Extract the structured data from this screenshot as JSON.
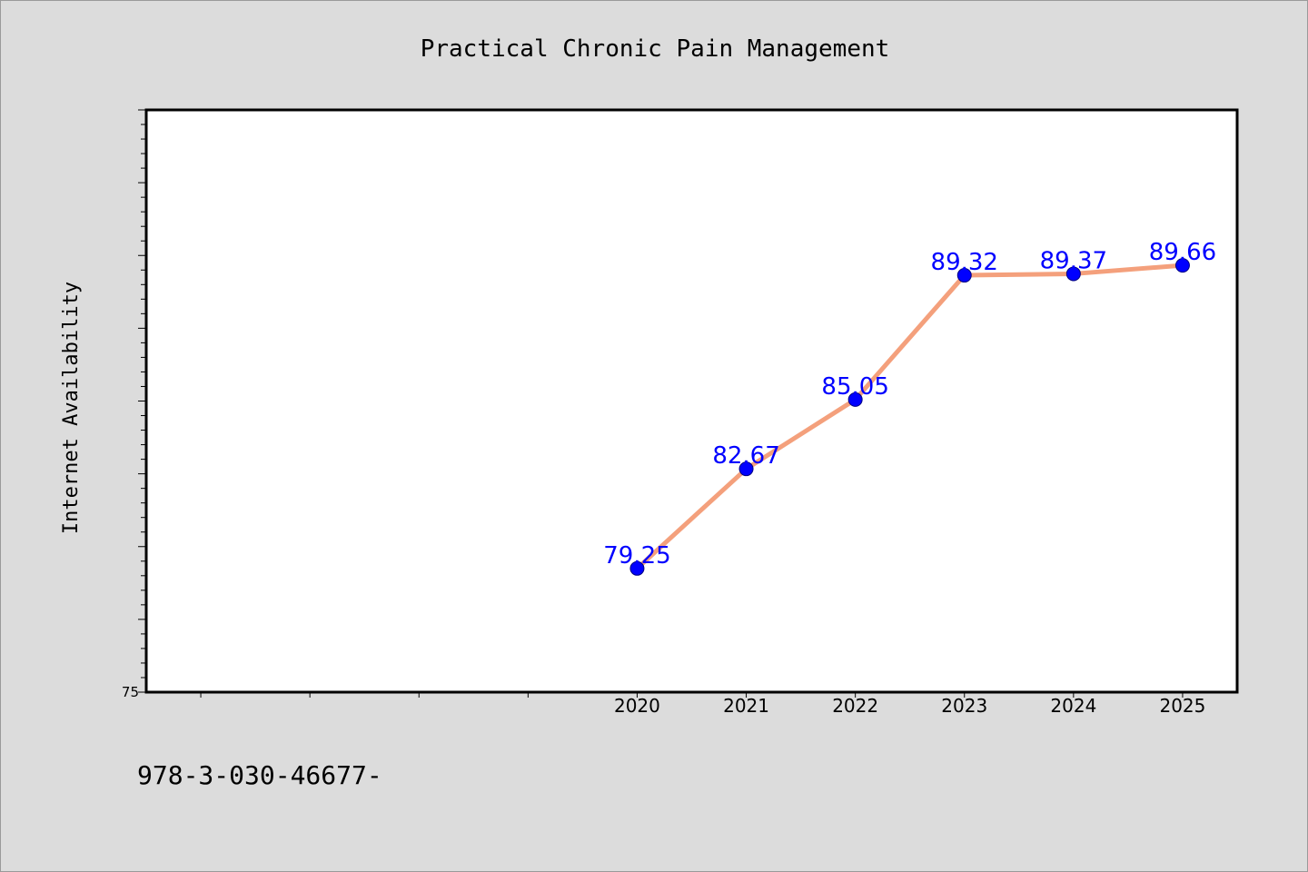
{
  "colors": {
    "background": "#dcdcdc",
    "plot_background": "#ffffff",
    "line": "#f4a07c",
    "marker": "#0000ff",
    "data_label": "#0000ff"
  },
  "footer": {
    "text": "978-3-030-46677-"
  },
  "chart_data": {
    "type": "line",
    "title": "Practical Chronic Pain Management",
    "xlabel": "",
    "ylabel": "Internet Availability",
    "categories": [
      "2020",
      "2021",
      "2022",
      "2023",
      "2024",
      "2025"
    ],
    "series": [
      {
        "values": [
          79.25,
          82.67,
          85.05,
          89.32,
          89.37,
          89.66
        ]
      }
    ],
    "data_labels": [
      "79.25",
      "82.67",
      "85.05",
      "89.32",
      "89.37",
      "89.66"
    ],
    "ylim": [
      75,
      95
    ],
    "yticks_labeled": [
      "75"
    ],
    "x_slots": 10,
    "first_category_slot": 4,
    "grid": false,
    "legend": "none"
  }
}
